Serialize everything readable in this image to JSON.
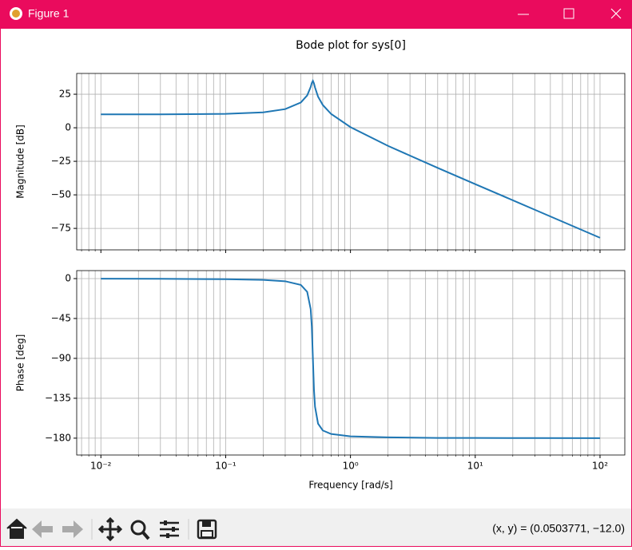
{
  "window": {
    "title": "Figure 1",
    "status": "(x, y) = (0.0503771, −12.0)"
  },
  "chart_data": [
    {
      "type": "line",
      "title": "Bode plot for sys[0]",
      "ylabel": "Magnitude [dB]",
      "color": "#1f77b4",
      "xscale": "log",
      "grid": true,
      "x": [
        0.01,
        0.03,
        0.1,
        0.2,
        0.3,
        0.4,
        0.45,
        0.48,
        0.49,
        0.5,
        0.51,
        0.52,
        0.55,
        0.6,
        0.7,
        1,
        2,
        5,
        10,
        30,
        100
      ],
      "values": [
        10.0,
        10.03,
        10.36,
        11.5,
        13.9,
        18.8,
        24.1,
        30.4,
        33.4,
        35.0,
        33.1,
        30.0,
        23.2,
        17.0,
        10.3,
        0.5,
        -13.5,
        -29.9,
        -42.0,
        -61.1,
        -82.0
      ],
      "xlim": [
        0.0064,
        158
      ],
      "ylim": [
        -91,
        40.5
      ],
      "xticks": [
        0.01,
        0.1,
        1,
        10,
        100
      ],
      "xminorticks": [
        0.007,
        0.008,
        0.009,
        0.02,
        0.03,
        0.04,
        0.05,
        0.06,
        0.07,
        0.08,
        0.09,
        0.2,
        0.3,
        0.4,
        0.5,
        0.6,
        0.7,
        0.8,
        0.9,
        2,
        3,
        4,
        5,
        6,
        7,
        8,
        9,
        20,
        30,
        40,
        50,
        60,
        70,
        80,
        90
      ],
      "yticks": [
        25,
        0,
        {
          "value": -25,
          "label": "−25"
        },
        {
          "value": -50,
          "label": "−50"
        },
        {
          "value": -75,
          "label": "−75"
        }
      ]
    },
    {
      "type": "line",
      "ylabel": "Phase [deg]",
      "xlabel": "Frequency [rad/s]",
      "color": "#1f77b4",
      "xscale": "log",
      "grid": true,
      "x": [
        0.01,
        0.03,
        0.1,
        0.2,
        0.3,
        0.4,
        0.45,
        0.48,
        0.49,
        0.5,
        0.51,
        0.52,
        0.55,
        0.6,
        0.7,
        1,
        2,
        5,
        10,
        30,
        100
      ],
      "values": [
        -0.1,
        -0.2,
        -0.7,
        -1.5,
        -3.0,
        -7.1,
        -14.9,
        -34.4,
        -54.2,
        -90,
        -125.3,
        -144.5,
        -163.6,
        -171.3,
        -175.3,
        -177.9,
        -179.1,
        -179.7,
        -179.8,
        -179.9,
        -180.0
      ],
      "xlim": [
        0.0064,
        158
      ],
      "ylim": [
        -199,
        9
      ],
      "xticks": [
        {
          "value": 0.01,
          "label": "10⁻²"
        },
        {
          "value": 0.1,
          "label": "10⁻¹"
        },
        {
          "value": 1,
          "label": "10⁰"
        },
        {
          "value": 10,
          "label": "10¹"
        },
        {
          "value": 100,
          "label": "10²"
        }
      ],
      "xminorticks": [
        0.007,
        0.008,
        0.009,
        0.02,
        0.03,
        0.04,
        0.05,
        0.06,
        0.07,
        0.08,
        0.09,
        0.2,
        0.3,
        0.4,
        0.5,
        0.6,
        0.7,
        0.8,
        0.9,
        2,
        3,
        4,
        5,
        6,
        7,
        8,
        9,
        20,
        30,
        40,
        50,
        60,
        70,
        80,
        90
      ],
      "yticks": [
        0,
        {
          "value": -45,
          "label": "−45"
        },
        {
          "value": -90,
          "label": "−90"
        },
        {
          "value": -135,
          "label": "−135"
        },
        {
          "value": -180,
          "label": "−180"
        }
      ]
    }
  ]
}
